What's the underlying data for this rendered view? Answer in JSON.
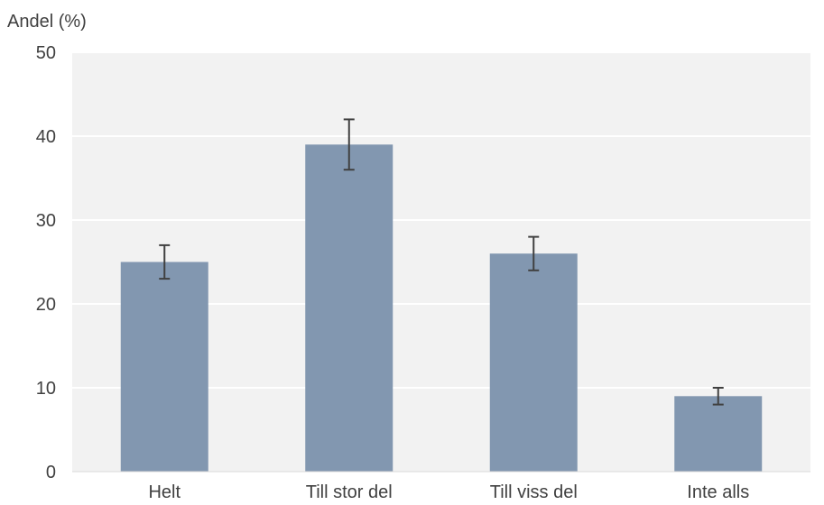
{
  "chart_data": {
    "type": "bar",
    "ylabel": "Andel (%)",
    "categories": [
      "Helt",
      "Till stor del",
      "Till viss del",
      "Inte alls"
    ],
    "values": [
      25,
      39,
      26,
      9
    ],
    "error_low": [
      23,
      36,
      24,
      8
    ],
    "error_high": [
      27,
      42,
      28,
      10
    ],
    "ylim": [
      0,
      50
    ],
    "yticks": [
      0,
      10,
      20,
      30,
      40,
      50
    ],
    "grid": true,
    "colors": {
      "bar": "#8297b0",
      "plot_background": "#f2f2f2",
      "gridline": "#ffffff",
      "error_bar": "#404040"
    }
  }
}
